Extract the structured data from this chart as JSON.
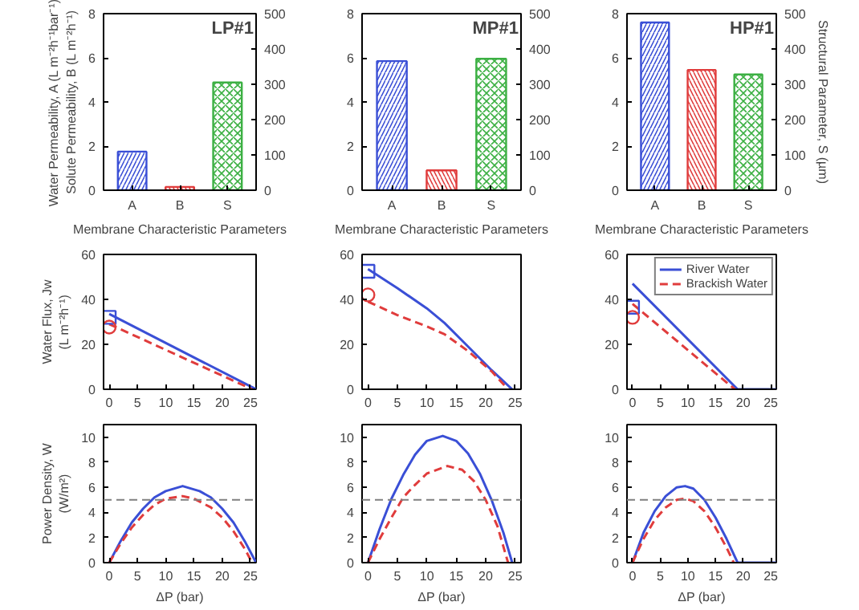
{
  "chart_data": [
    {
      "type": "bar",
      "title": "LP#1",
      "xlabel": "Membrane Characteristic Parameters",
      "ylabel": "Water Permeability, A (L m⁻²h⁻¹bar⁻¹)\nSolute Permeability, B (L m⁻²h⁻¹)",
      "categories": [
        "A",
        "B",
        "S"
      ],
      "ylim": [
        0,
        8
      ],
      "yticks": [
        0,
        2,
        4,
        6,
        8
      ],
      "y2lim": [
        0,
        500
      ],
      "y2ticks": [
        0,
        100,
        200,
        300,
        400,
        500
      ],
      "series": [
        {
          "color": "#3a4fd6",
          "values": [
            1.75,
            null,
            null
          ]
        },
        {
          "color": "#e03c3c",
          "values": [
            null,
            0.15,
            null
          ]
        },
        {
          "color": "#3cb043",
          "axis": "y2",
          "values": [
            null,
            null,
            305
          ]
        }
      ]
    },
    {
      "type": "bar",
      "title": "MP#1",
      "xlabel": "Membrane Characteristic Parameters",
      "categories": [
        "A",
        "B",
        "S"
      ],
      "ylim": [
        0,
        8
      ],
      "yticks": [
        0,
        2,
        4,
        6,
        8
      ],
      "y2lim": [
        0,
        500
      ],
      "y2ticks": [
        0,
        100,
        200,
        300,
        400,
        500
      ],
      "series": [
        {
          "color": "#3a4fd6",
          "values": [
            5.85,
            null,
            null
          ]
        },
        {
          "color": "#e03c3c",
          "values": [
            null,
            0.9,
            null
          ]
        },
        {
          "color": "#3cb043",
          "axis": "y2",
          "values": [
            null,
            null,
            372
          ]
        }
      ]
    },
    {
      "type": "bar",
      "title": "HP#1",
      "xlabel": "Membrane Characteristic Parameters",
      "y2label": "Structural Parameter, S (µm)",
      "categories": [
        "A",
        "B",
        "S"
      ],
      "ylim": [
        0,
        8
      ],
      "yticks": [
        0,
        2,
        4,
        6,
        8
      ],
      "y2lim": [
        0,
        500
      ],
      "y2ticks": [
        0,
        100,
        200,
        300,
        400,
        500
      ],
      "series": [
        {
          "color": "#3a4fd6",
          "values": [
            7.6,
            null,
            null
          ]
        },
        {
          "color": "#e03c3c",
          "values": [
            null,
            5.45,
            null
          ]
        },
        {
          "color": "#3cb043",
          "axis": "y2",
          "values": [
            null,
            null,
            328
          ]
        }
      ]
    },
    {
      "type": "line",
      "ylabel": "Water Flux, Jw\n(L m⁻²h⁻¹)",
      "xlim": [
        -1,
        26
      ],
      "xticks": [
        0,
        5,
        10,
        15,
        20,
        25
      ],
      "ylim": [
        0,
        60
      ],
      "yticks": [
        0,
        20,
        40,
        60
      ],
      "series": [
        {
          "color": "#3a4fd6",
          "line_style": "solid",
          "x": [
            0,
            26
          ],
          "values": [
            33.5,
            0
          ]
        },
        {
          "color": "#e03c3c",
          "line_style": "dashed",
          "x": [
            0,
            25.3
          ],
          "values": [
            29,
            0
          ]
        },
        {
          "type": "scatter",
          "marker": "square",
          "color": "#3a4fd6",
          "x": [
            0
          ],
          "values": [
            32
          ]
        },
        {
          "type": "scatter",
          "marker": "circle",
          "color": "#e03c3c",
          "x": [
            0
          ],
          "values": [
            27.7
          ]
        }
      ]
    },
    {
      "type": "line",
      "xlim": [
        -1,
        26
      ],
      "xticks": [
        0,
        5,
        10,
        15,
        20,
        25
      ],
      "ylim": [
        0,
        60
      ],
      "yticks": [
        0,
        20,
        40,
        60
      ],
      "series": [
        {
          "color": "#3a4fd6",
          "line_style": "solid",
          "x": [
            0,
            5,
            10,
            13,
            17,
            21,
            24.5
          ],
          "values": [
            53.5,
            45,
            36,
            29.5,
            19,
            8.5,
            0
          ]
        },
        {
          "color": "#e03c3c",
          "line_style": "dashed",
          "x": [
            0,
            5,
            10,
            13,
            17,
            21,
            23.8
          ],
          "values": [
            39,
            33,
            28,
            24.5,
            17,
            8,
            0
          ]
        },
        {
          "type": "scatter",
          "marker": "square",
          "color": "#3a4fd6",
          "x": [
            0
          ],
          "values": [
            52.5
          ]
        },
        {
          "type": "scatter",
          "marker": "circle",
          "color": "#e03c3c",
          "x": [
            0
          ],
          "values": [
            42
          ]
        }
      ]
    },
    {
      "type": "line",
      "legend": "top right",
      "xlim": [
        -1,
        26
      ],
      "xticks": [
        0,
        5,
        10,
        15,
        20,
        25
      ],
      "ylim": [
        0,
        60
      ],
      "yticks": [
        0,
        20,
        40,
        60
      ],
      "series": [
        {
          "name": "River Water",
          "color": "#3a4fd6",
          "line_style": "solid",
          "x": [
            0,
            19,
            26
          ],
          "values": [
            47,
            0,
            0
          ]
        },
        {
          "name": "Brackish Water",
          "color": "#e03c3c",
          "line_style": "dashed",
          "x": [
            0,
            18.5
          ],
          "values": [
            38,
            0
          ]
        },
        {
          "type": "scatter",
          "marker": "square",
          "color": "#3a4fd6",
          "x": [
            0
          ],
          "values": [
            36.5
          ]
        },
        {
          "type": "scatter",
          "marker": "circle",
          "color": "#e03c3c",
          "x": [
            0
          ],
          "values": [
            32
          ]
        }
      ]
    },
    {
      "type": "line",
      "xlabel": "ΔP (bar)",
      "ylabel": "Power Density, W\n(W/m²)",
      "xlim": [
        -1,
        26
      ],
      "xticks": [
        0,
        5,
        10,
        15,
        20,
        25
      ],
      "ylim": [
        0,
        11
      ],
      "yticks": [
        0,
        2,
        4,
        6,
        8,
        10
      ],
      "ref_lines": [
        {
          "axis": "y",
          "value": 5,
          "color": "#808080",
          "line_style": "dashed"
        }
      ],
      "series": [
        {
          "color": "#3a4fd6",
          "line_style": "solid",
          "x": [
            0,
            2,
            4,
            6,
            8,
            10,
            13,
            16,
            18,
            20,
            22,
            24,
            26
          ],
          "values": [
            0,
            1.7,
            3.2,
            4.3,
            5.2,
            5.7,
            6.1,
            5.7,
            5.2,
            4.3,
            3.2,
            1.7,
            0
          ]
        },
        {
          "color": "#e03c3c",
          "line_style": "dashed",
          "x": [
            0,
            2,
            4,
            6,
            8,
            10,
            13,
            15,
            18,
            20,
            22,
            24,
            25.3
          ],
          "values": [
            0,
            1.5,
            2.8,
            3.8,
            4.6,
            5.1,
            5.3,
            5.1,
            4.4,
            3.6,
            2.5,
            1.1,
            0
          ]
        }
      ]
    },
    {
      "type": "line",
      "xlabel": "ΔP (bar)",
      "xlim": [
        -1,
        26
      ],
      "xticks": [
        0,
        5,
        10,
        15,
        20,
        25
      ],
      "ylim": [
        0,
        11
      ],
      "yticks": [
        0,
        2,
        4,
        6,
        8,
        10
      ],
      "ref_lines": [
        {
          "axis": "y",
          "value": 5,
          "color": "#808080",
          "line_style": "dashed"
        }
      ],
      "series": [
        {
          "color": "#3a4fd6",
          "line_style": "solid",
          "x": [
            0,
            2,
            4,
            6,
            8,
            10,
            12.7,
            15,
            17,
            19,
            21,
            23,
            24.5
          ],
          "values": [
            0,
            2.7,
            5.1,
            7.0,
            8.6,
            9.7,
            10.1,
            9.7,
            8.7,
            7.1,
            5.0,
            2.4,
            0
          ]
        },
        {
          "color": "#e03c3c",
          "line_style": "dashed",
          "x": [
            0,
            2,
            4,
            6,
            8,
            10,
            13.5,
            16,
            18,
            20,
            22,
            23.8
          ],
          "values": [
            0,
            1.9,
            3.6,
            5.2,
            6.2,
            7.1,
            7.7,
            7.4,
            6.5,
            5.0,
            2.9,
            0
          ]
        }
      ]
    },
    {
      "type": "line",
      "xlabel": "ΔP (bar)",
      "xlim": [
        -1,
        26
      ],
      "xticks": [
        0,
        5,
        10,
        15,
        20,
        25
      ],
      "ylim": [
        0,
        11
      ],
      "yticks": [
        0,
        2,
        4,
        6,
        8,
        10
      ],
      "ref_lines": [
        {
          "axis": "y",
          "value": 5,
          "color": "#808080",
          "line_style": "dashed"
        }
      ],
      "series": [
        {
          "color": "#3a4fd6",
          "line_style": "solid",
          "x": [
            0,
            2,
            4,
            6,
            8,
            9.5,
            11,
            13,
            15,
            17,
            19,
            26
          ],
          "values": [
            0,
            2.4,
            4.1,
            5.3,
            6.0,
            6.1,
            5.9,
            5.0,
            3.6,
            1.9,
            0,
            0
          ]
        },
        {
          "color": "#e03c3c",
          "line_style": "dashed",
          "x": [
            0,
            2,
            4,
            6,
            8,
            9.5,
            11,
            13,
            15,
            17,
            18.3
          ],
          "values": [
            0,
            1.9,
            3.4,
            4.4,
            5.0,
            5.1,
            4.9,
            4.1,
            2.8,
            1.2,
            0
          ]
        }
      ]
    }
  ]
}
